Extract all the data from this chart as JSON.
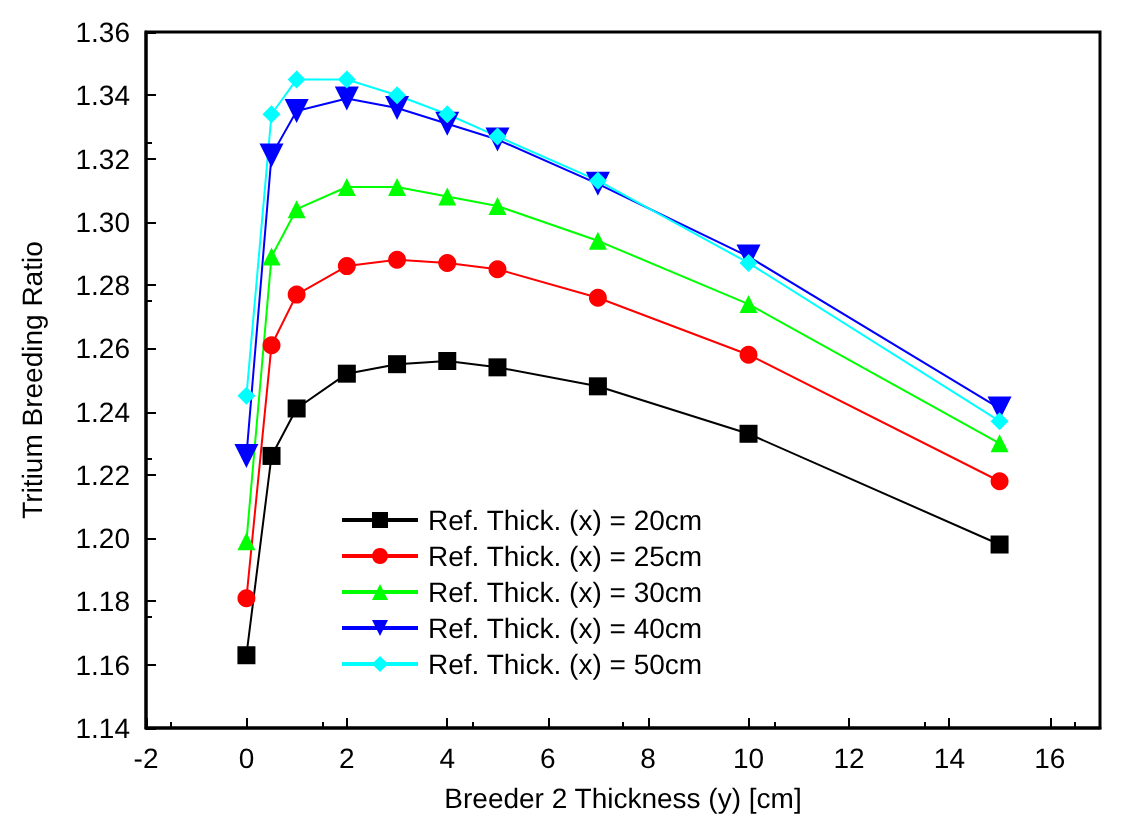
{
  "chart_data": {
    "type": "line",
    "xlabel": "Breeder 2 Thickness (y) [cm]",
    "ylabel": "Tritium Breeding Ratio",
    "x": [
      0,
      0.5,
      1,
      2,
      3,
      4,
      5,
      7,
      10,
      15
    ],
    "series": [
      {
        "name": "Ref. Thick. (x) = 20cm",
        "color": "#000000",
        "marker": "square",
        "values": [
          1.163,
          1.226,
          1.241,
          1.252,
          1.255,
          1.256,
          1.254,
          1.248,
          1.233,
          1.198
        ]
      },
      {
        "name": "Ref. Thick. (x) = 25cm",
        "color": "#ff0000",
        "marker": "circle",
        "values": [
          1.181,
          1.261,
          1.277,
          1.286,
          1.288,
          1.287,
          1.285,
          1.276,
          1.258,
          1.218
        ]
      },
      {
        "name": "Ref. Thick. (x) = 30cm",
        "color": "#00ff00",
        "marker": "triangle",
        "values": [
          1.199,
          1.289,
          1.304,
          1.311,
          1.311,
          1.308,
          1.305,
          1.294,
          1.274,
          1.23
        ]
      },
      {
        "name": "Ref. Thick. (x) = 40cm",
        "color": "#0000ff",
        "marker": "triangle-down",
        "values": [
          1.226,
          1.321,
          1.335,
          1.339,
          1.336,
          1.331,
          1.326,
          1.312,
          1.289,
          1.241
        ]
      },
      {
        "name": "Ref. Thick. (x) = 50cm",
        "color": "#00ffff",
        "marker": "diamond",
        "values": [
          1.245,
          1.334,
          1.345,
          1.345,
          1.34,
          1.334,
          1.327,
          1.313,
          1.287,
          1.237
        ]
      }
    ],
    "xlim": [
      -2,
      17
    ],
    "xticks": [
      -2,
      0,
      2,
      4,
      6,
      8,
      10,
      12,
      14,
      16
    ],
    "ylim": [
      1.14,
      1.36
    ],
    "yticks": [
      1.14,
      1.16,
      1.18,
      {
        "value": 1.2,
        "label": "1.20"
      },
      1.22,
      1.24,
      1.26,
      1.28,
      {
        "value": 1.3,
        "label": "1.30"
      },
      1.32,
      1.34,
      1.36
    ],
    "grid": false,
    "legend": "bottom",
    "line_style": "solid"
  }
}
